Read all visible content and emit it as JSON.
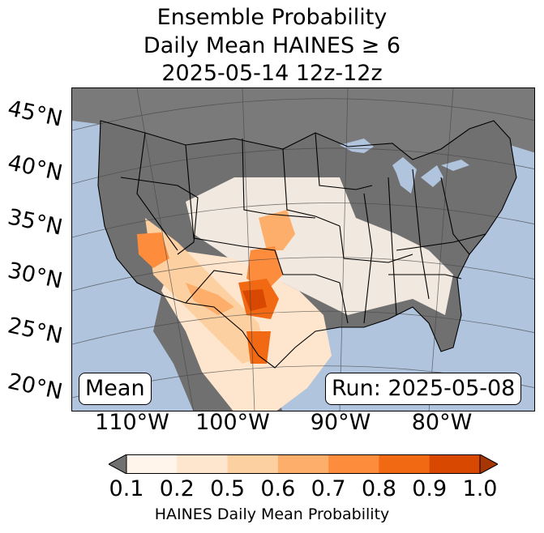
{
  "title": {
    "line1": "Ensemble Probability",
    "line2": "Daily Mean HAINES ≥ 6",
    "line3": "2025-05-14 12z-12z"
  },
  "map": {
    "ocean_color": "#b0c4de",
    "land_low_color": "#707070",
    "lat_labels": [
      "45°N",
      "40°N",
      "35°N",
      "30°N",
      "25°N",
      "20°N"
    ],
    "lon_labels": [
      "110°W",
      "100°W",
      "90°W",
      "80°W"
    ]
  },
  "labels": {
    "mean": "Mean",
    "run": "Run: 2025-05-08"
  },
  "colorbar": {
    "under_color": "#707070",
    "over_color": "#a63603",
    "colors": [
      "#fff5eb",
      "#fee6ce",
      "#fdd0a2",
      "#fdae6b",
      "#fd8d3c",
      "#f16913",
      "#d94801"
    ],
    "ticks": [
      "0.1",
      "0.2",
      "0.5",
      "0.6",
      "0.7",
      "0.8",
      "0.9",
      "1.0"
    ],
    "label": "HAINES Daily Mean Probability"
  }
}
